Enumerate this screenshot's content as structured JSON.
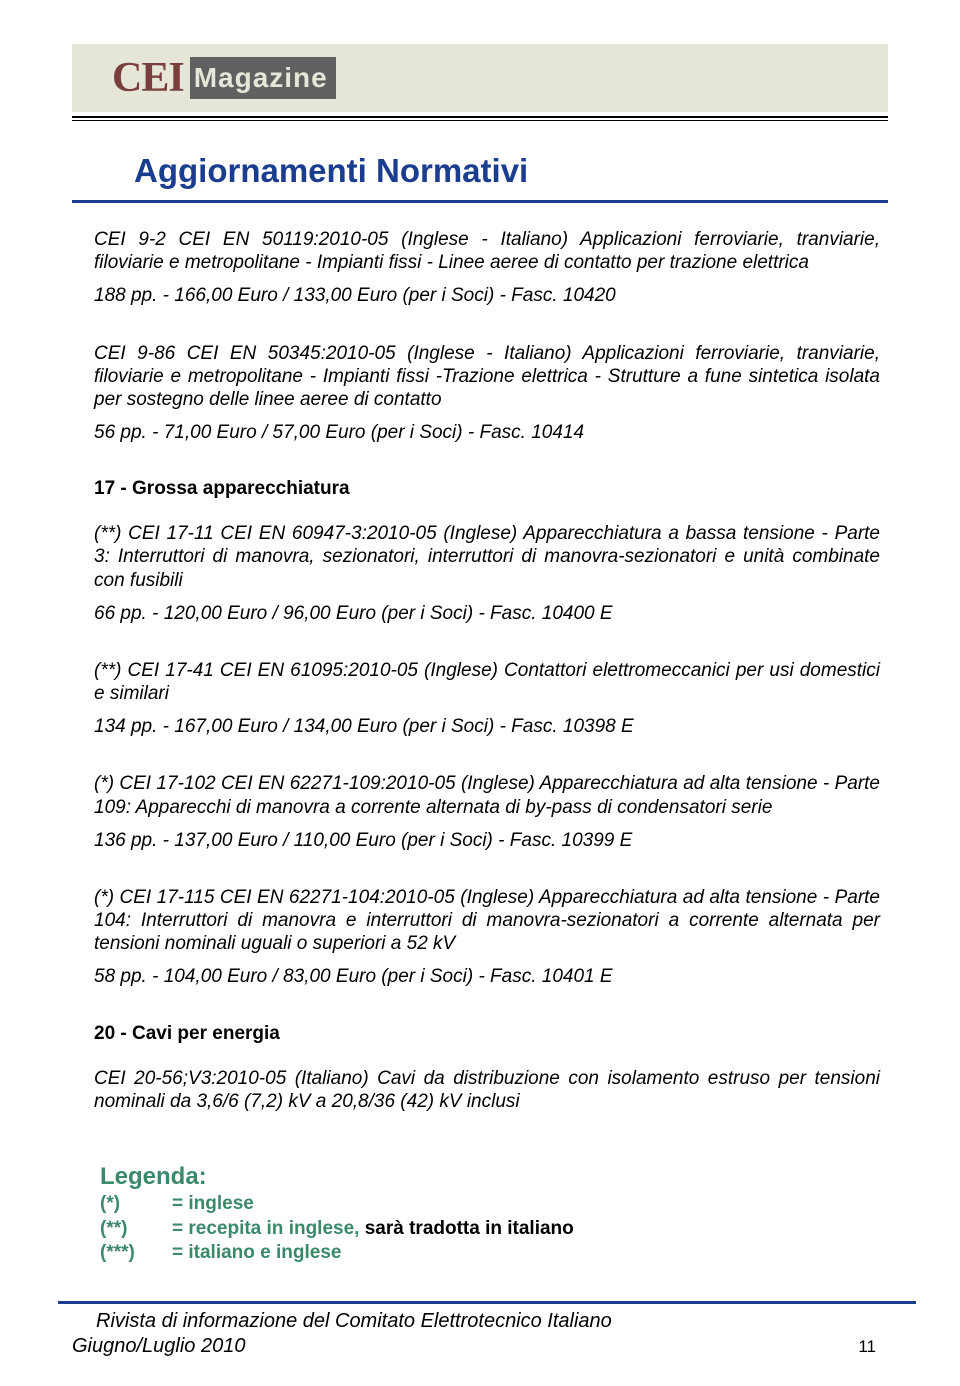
{
  "logo": {
    "part1": "CEI",
    "part2": "Magazine"
  },
  "title": "Aggiornamenti Normativi",
  "colors": {
    "title": "#1a3d8f",
    "legend_green": "#3a8a6a",
    "logo_bg": "#e6e6d8",
    "logo_box": "#606060",
    "logo_cei": "#7a3e3e"
  },
  "entries": [
    {
      "title": "CEI 9-2  CEI EN 50119:2010-05 (Inglese - Italiano) Applicazioni ferroviarie, tranviarie, filoviarie e metropolitane - Impianti fissi - Linee aeree di contatto per trazione elettrica",
      "info": "188 pp. - 166,00 Euro / 133,00 Euro (per i Soci) -  Fasc. 10420"
    },
    {
      "title": "CEI 9-86  CEI EN 50345:2010-05 (Inglese - Italiano) Applicazioni ferroviarie, tranviarie, filoviarie e metropolitane - Impianti fissi -Trazione elettrica - Strutture a fune sintetica isolata per sostegno delle linee aeree di contatto",
      "info": "56 pp. - 71,00 Euro / 57,00 Euro (per i Soci) -  Fasc. 10414"
    }
  ],
  "section17": {
    "heading": "17 - Grossa apparecchiatura",
    "items": [
      {
        "title": "(**) CEI 17-11  CEI EN 60947-3:2010-05 (Inglese) Apparecchiatura a bassa tensione - Parte 3: Interruttori di manovra, sezionatori, interruttori di manovra-sezionatori e unità combinate con fusibili",
        "info": "66 pp. - 120,00 Euro / 96,00 Euro (per i Soci) -  Fasc. 10400 E"
      },
      {
        "title": "(**) CEI 17-41  CEI EN 61095:2010-05 (Inglese) Contattori elettromeccanici per usi domestici e similari",
        "info": "134 pp. - 167,00 Euro / 134,00 Euro (per i Soci) -  Fasc. 10398 E"
      },
      {
        "title": "(*) CEI 17-102  CEI EN 62271-109:2010-05 (Inglese) Apparecchiatura ad alta tensione - Parte 109: Apparecchi di manovra a corrente alternata di by-pass di condensatori serie",
        "info": "136 pp. - 137,00 Euro / 110,00 Euro (per i Soci) -  Fasc. 10399 E"
      },
      {
        "title": "(*) CEI 17-115  CEI EN 62271-104:2010-05 (Inglese) Apparecchiatura ad alta tensione - Parte 104: Interruttori di manovra e interruttori di manovra-sezionatori a corrente alternata per tensioni nominali uguali o superiori a 52 kV",
        "info": "58 pp. - 104,00 Euro / 83,00 Euro (per i Soci) -  Fasc. 10401 E"
      }
    ]
  },
  "section20": {
    "heading": "20 - Cavi per energia",
    "items": [
      {
        "title": "CEI 20-56;V3:2010-05 (Italiano) Cavi da distribuzione con isolamento estruso per tensioni nominali da 3,6/6 (7,2) kV a 20,8/36 (42) kV inclusi",
        "info": ""
      }
    ]
  },
  "legend": {
    "title": "Legenda:",
    "rows": [
      {
        "mark": "(*)",
        "text_green": "= inglese",
        "text_black": ""
      },
      {
        "mark": "(**)",
        "text_green": "= recepita in inglese, ",
        "text_black": "sarà tradotta in italiano"
      },
      {
        "mark": "(***)",
        "text_green": "= italiano e inglese",
        "text_black": ""
      }
    ]
  },
  "footer": {
    "line1": "Rivista di informazione del Comitato Elettrotecnico Italiano",
    "date": "Giugno/Luglio 2010",
    "page": "11"
  }
}
